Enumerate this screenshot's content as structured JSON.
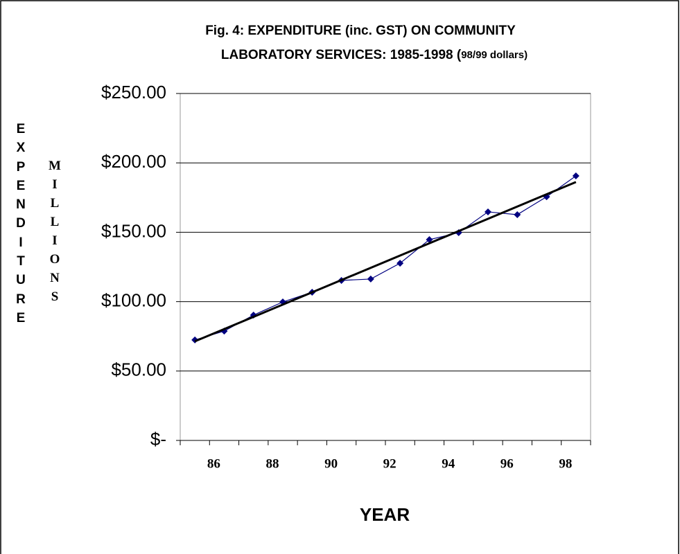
{
  "chart_data": {
    "type": "line",
    "title": [
      "Fig. 4: EXPENDITURE (inc. GST) ON COMMUNITY",
      "LABORATORY SERVICES: 1985-1998 ("
    ],
    "subtitle": "98/99 dollars)",
    "y_label": "EXPENDITURE",
    "y_label_2": "MILLIONS",
    "x_label": "YEAR",
    "categories": [
      null,
      "86",
      null,
      "88",
      null,
      "90",
      null,
      "92",
      null,
      "94",
      null,
      "96",
      null,
      "98"
    ],
    "series": [
      {
        "color": "#000080",
        "values": [
          72.4,
          78.8,
          90.3,
          99.8,
          106.8,
          115.3,
          116.3,
          127.7,
          144.7,
          149.7,
          164.7,
          162.7,
          175.6,
          190.6
        ]
      }
    ],
    "trendline": {
      "color": "#000000",
      "values": [
        71.4,
        186.2
      ]
    },
    "ylim": [
      0,
      250
    ],
    "yticks": [
      {
        "value": 0,
        "label": "$-"
      },
      {
        "value": 50,
        "label": "$50.00"
      },
      {
        "value": 100,
        "label": "$100.00"
      },
      {
        "value": 150,
        "label": "$150.00"
      },
      {
        "value": 200,
        "label": "$200.00"
      },
      {
        "value": 250,
        "label": "$250.00"
      }
    ],
    "grid": true
  }
}
